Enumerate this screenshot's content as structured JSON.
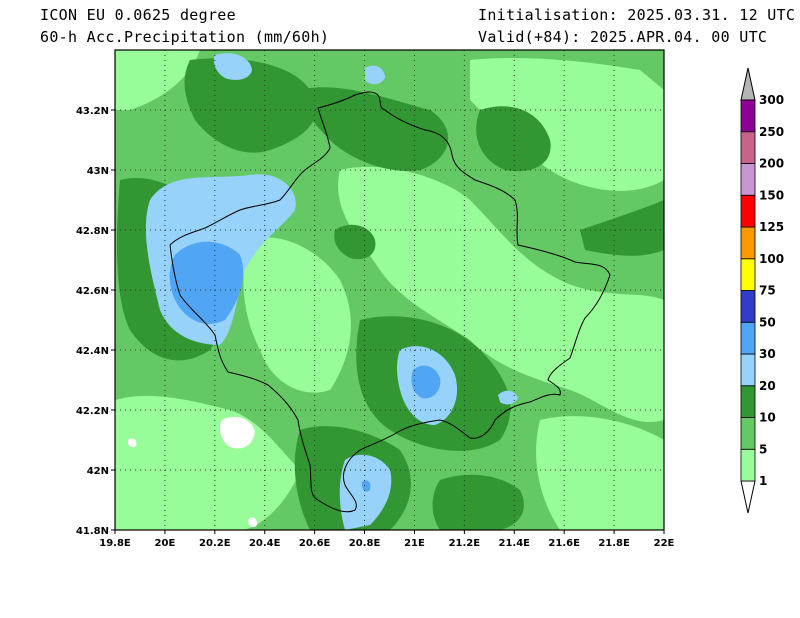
{
  "header": {
    "model": "ICON EU 0.0625 degree",
    "field": "60-h Acc.Precipitation (mm/60h)",
    "init": "Initialisation: 2025.03.31. 12 UTC",
    "valid": "Valid(+84): 2025.APR.04. 00 UTC"
  },
  "map": {
    "lon_ticks": [
      "19.8E",
      "20E",
      "20.2E",
      "20.4E",
      "20.6E",
      "20.8E",
      "21E",
      "21.2E",
      "21.4E",
      "21.6E",
      "21.8E",
      "22E"
    ],
    "lat_ticks": [
      "41.8N",
      "42N",
      "42.2N",
      "42.4N",
      "42.6N",
      "42.8N",
      "43N",
      "43.2N"
    ]
  },
  "colorbar": {
    "labels": [
      "1",
      "5",
      "10",
      "20",
      "30",
      "50",
      "75",
      "100",
      "125",
      "150",
      "200",
      "250",
      "300"
    ],
    "colors": [
      "#ffffff",
      "#98fc98",
      "#64c864",
      "#329632",
      "#96d2fa",
      "#50a5f5",
      "#323cc8",
      "#ffff00",
      "#ff9900",
      "#ff0000",
      "#c896d2",
      "#c8648c",
      "#8c0096",
      "#b4b4b4"
    ]
  }
}
